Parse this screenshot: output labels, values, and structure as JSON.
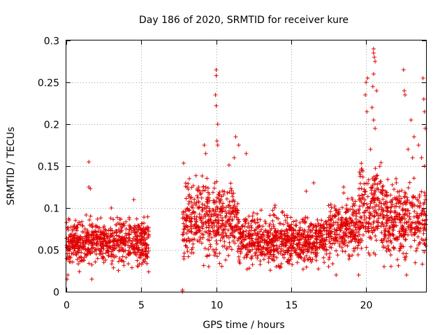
{
  "chart_data": {
    "type": "scatter",
    "title": "Day 186 of 2020, SRMTID for receiver kure",
    "xlabel": "GPS time / hours",
    "ylabel": "SRMTID / TECUs",
    "xlim": [
      0,
      24
    ],
    "ylim": [
      0,
      0.3
    ],
    "xticks": [
      0,
      5,
      10,
      15,
      20
    ],
    "yticks": [
      0,
      0.05,
      0.1,
      0.15,
      0.2,
      0.25,
      0.3
    ],
    "xtick_labels": [
      "0",
      "5",
      "10",
      "15",
      "20"
    ],
    "ytick_labels": [
      "0",
      "0.05",
      "0.1",
      "0.15",
      "0.2",
      "0.25",
      "0.3"
    ],
    "grid": true,
    "marker": "+",
    "color": "#e00000",
    "series": [
      {
        "name": "SRMTID",
        "segments": [
          {
            "t_start": 0.0,
            "t_end": 5.5,
            "mean": 0.06,
            "spread": 0.018
          },
          {
            "t_start": 7.75,
            "t_end": 9.0,
            "mean": 0.09,
            "spread": 0.03
          },
          {
            "t_start": 9.0,
            "t_end": 11.5,
            "mean": 0.085,
            "spread": 0.03
          },
          {
            "t_start": 11.5,
            "t_end": 17.5,
            "mean": 0.062,
            "spread": 0.02
          },
          {
            "t_start": 17.5,
            "t_end": 19.5,
            "mean": 0.075,
            "spread": 0.022
          },
          {
            "t_start": 19.5,
            "t_end": 21.0,
            "mean": 0.1,
            "spread": 0.035
          },
          {
            "t_start": 21.0,
            "t_end": 24.0,
            "mean": 0.085,
            "spread": 0.03
          }
        ],
        "points": [
          [
            0.05,
            0.015
          ],
          [
            0.1,
            0.02
          ],
          [
            1.5,
            0.155
          ],
          [
            1.5,
            0.125
          ],
          [
            1.6,
            0.123
          ],
          [
            1.7,
            0.015
          ],
          [
            4.5,
            0.11
          ],
          [
            3.0,
            0.1
          ],
          [
            7.75,
            0.0
          ],
          [
            7.75,
            0.002
          ],
          [
            9.5,
            0.03
          ],
          [
            10.0,
            0.265
          ],
          [
            10.0,
            0.258
          ],
          [
            9.95,
            0.235
          ],
          [
            10.0,
            0.222
          ],
          [
            10.1,
            0.2
          ],
          [
            10.05,
            0.18
          ],
          [
            10.1,
            0.175
          ],
          [
            9.2,
            0.175
          ],
          [
            9.3,
            0.165
          ],
          [
            11.3,
            0.185
          ],
          [
            11.5,
            0.175
          ],
          [
            12.0,
            0.165
          ],
          [
            11.2,
            0.16
          ],
          [
            13.5,
            0.04
          ],
          [
            14.0,
            0.03
          ],
          [
            16.5,
            0.13
          ],
          [
            16.0,
            0.12
          ],
          [
            17.5,
            0.03
          ],
          [
            17.2,
            0.035
          ],
          [
            18.0,
            0.02
          ],
          [
            18.5,
            0.125
          ],
          [
            19.5,
            0.02
          ],
          [
            20.0,
            0.25
          ],
          [
            20.1,
            0.255
          ],
          [
            19.95,
            0.235
          ],
          [
            20.05,
            0.215
          ],
          [
            20.5,
            0.29
          ],
          [
            20.5,
            0.285
          ],
          [
            20.55,
            0.28
          ],
          [
            20.6,
            0.275
          ],
          [
            20.5,
            0.26
          ],
          [
            20.45,
            0.245
          ],
          [
            20.7,
            0.24
          ],
          [
            20.4,
            0.22
          ],
          [
            20.5,
            0.205
          ],
          [
            20.6,
            0.195
          ],
          [
            20.3,
            0.17
          ],
          [
            21.2,
            0.03
          ],
          [
            22.5,
            0.265
          ],
          [
            22.55,
            0.24
          ],
          [
            22.6,
            0.235
          ],
          [
            22.7,
            0.02
          ],
          [
            22.0,
            0.135
          ],
          [
            23.0,
            0.205
          ],
          [
            23.2,
            0.185
          ],
          [
            23.5,
            0.175
          ],
          [
            23.8,
            0.255
          ],
          [
            23.85,
            0.23
          ],
          [
            23.9,
            0.215
          ],
          [
            23.95,
            0.195
          ],
          [
            23.7,
            0.16
          ],
          [
            23.9,
            0.15
          ],
          [
            22.8,
            0.17
          ],
          [
            23.1,
            0.16
          ]
        ]
      }
    ]
  }
}
